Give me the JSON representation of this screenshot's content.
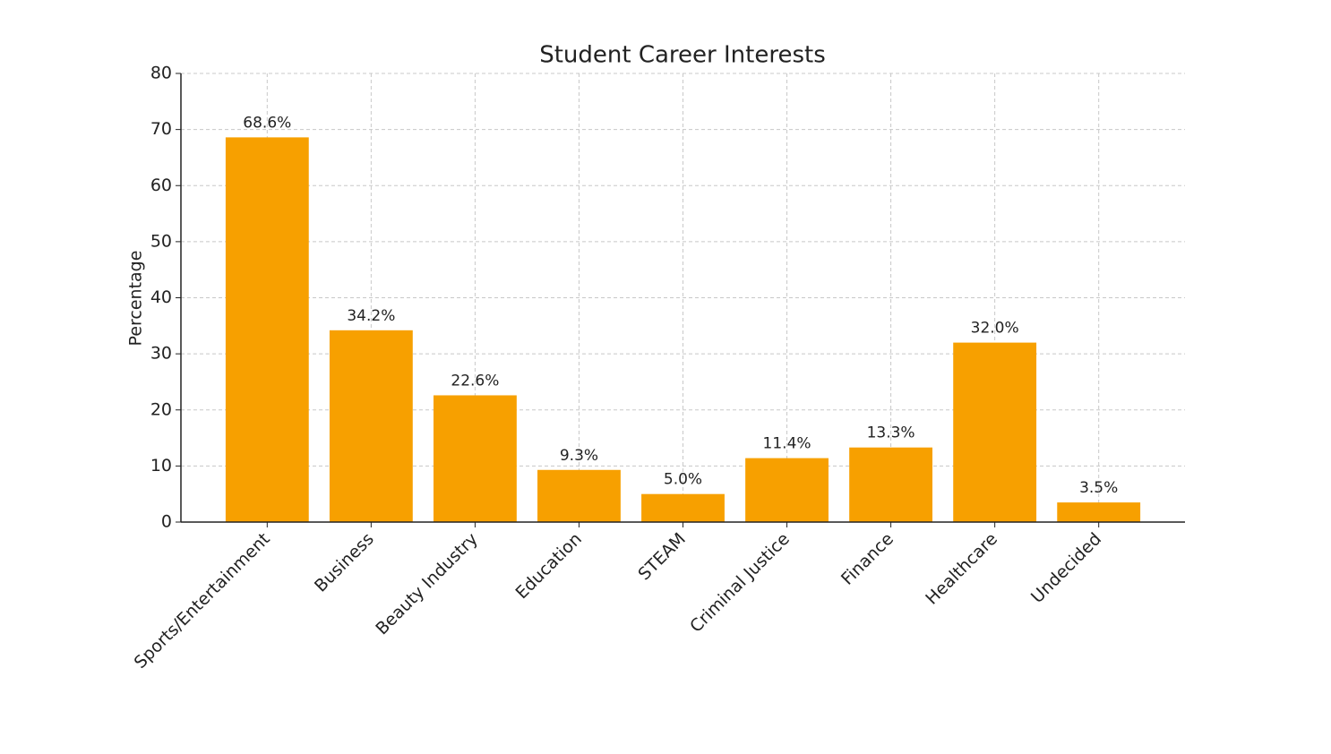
{
  "chart_data": {
    "type": "bar",
    "title": "Student Career Interests",
    "ylabel": "Percentage",
    "categories": [
      "Sports/Entertainment",
      "Business",
      "Beauty Industry",
      "Education",
      "STEAM",
      "Criminal Justice",
      "Finance",
      "Healthcare",
      "Undecided"
    ],
    "values": [
      68.6,
      34.2,
      22.6,
      9.3,
      5.0,
      11.4,
      13.3,
      32.0,
      3.5
    ],
    "value_labels": [
      "68.6%",
      "34.2%",
      "22.6%",
      "9.3%",
      "5.0%",
      "11.4%",
      "13.3%",
      "32.0%",
      "3.5%"
    ],
    "color": "#f7a000",
    "ylim": [
      0,
      80
    ],
    "yticks": [
      0,
      10,
      20,
      30,
      40,
      50,
      60,
      70,
      80
    ],
    "grid": true
  }
}
